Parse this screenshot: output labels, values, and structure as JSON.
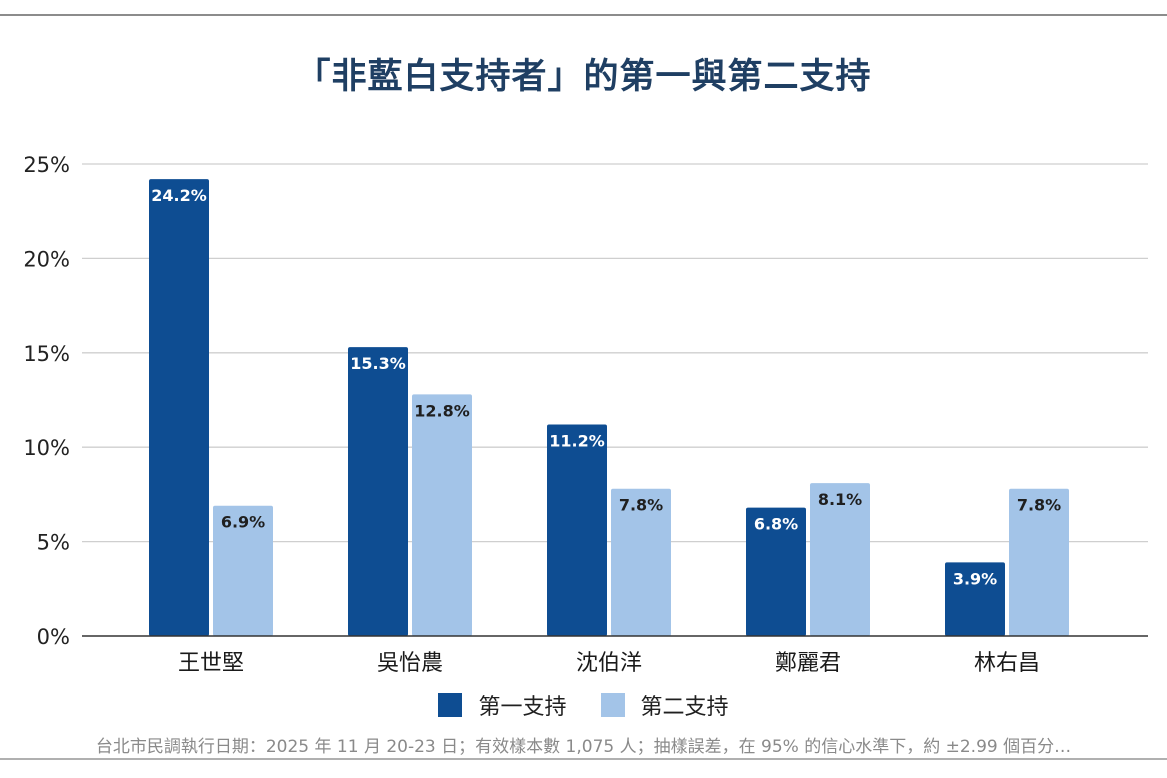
{
  "chart_data": {
    "type": "bar",
    "title": "「非藍白支持者」的第一與第二支持",
    "categories": [
      "王世堅",
      "吳怡農",
      "沈伯洋",
      "鄭麗君",
      "林右昌"
    ],
    "series": [
      {
        "name": "第一支持",
        "values": [
          24.2,
          15.3,
          11.2,
          6.8,
          3.9
        ],
        "color": "#0e4d92",
        "label_color": "#ffffff"
      },
      {
        "name": "第二支持",
        "values": [
          6.9,
          12.8,
          7.8,
          8.1,
          7.8
        ],
        "color": "#a3c4e8",
        "label_color": "#1f1f1f"
      }
    ],
    "value_suffix": "%",
    "y_ticks": [
      "0%",
      "5%",
      "10%",
      "15%",
      "20%",
      "25%"
    ],
    "ylim": [
      0,
      25
    ],
    "grid": true,
    "legend_position": "bottom",
    "xlabel": "",
    "ylabel": ""
  },
  "footnote": "台北市民調執行日期：2025 年 11 月 20-23 日；有效樣本數 1,075 人；抽樣誤差，在 95% 的信心水準下，約 ±2.99 個百分…"
}
